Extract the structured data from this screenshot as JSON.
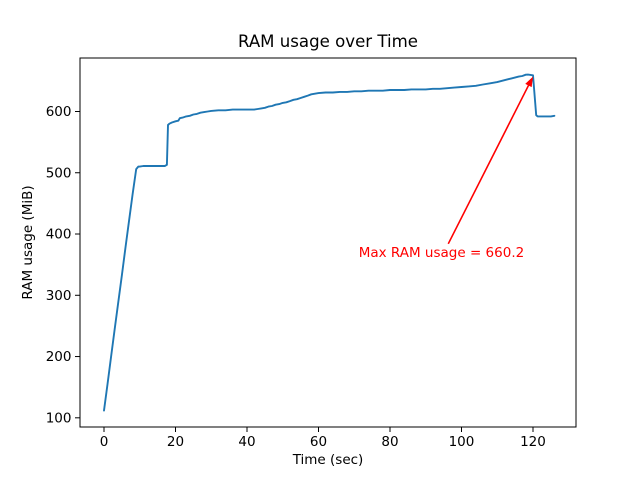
{
  "figure": {
    "background": "#ffffff"
  },
  "chart_data": {
    "type": "line",
    "title": "RAM usage over Time",
    "xlabel": "Time (sec)",
    "ylabel": "RAM usage (MiB)",
    "xlim": [
      -6.71,
      132.03
    ],
    "ylim": [
      85,
      687.3
    ],
    "xticks": [
      0,
      20,
      40,
      60,
      80,
      100,
      120
    ],
    "yticks": [
      100,
      200,
      300,
      400,
      500,
      600
    ],
    "grid": false,
    "legend": null,
    "colors": {
      "line": "#1f77b4",
      "annotation": "#ff0000",
      "axes": "#000000",
      "background": "#ffffff"
    },
    "series": [
      {
        "name": "RAM usage",
        "points": [
          [
            0,
            112
          ],
          [
            1,
            156
          ],
          [
            2,
            200
          ],
          [
            3,
            245
          ],
          [
            4,
            289
          ],
          [
            5,
            333
          ],
          [
            6,
            377
          ],
          [
            7,
            421
          ],
          [
            8,
            465
          ],
          [
            9,
            506
          ],
          [
            9.6,
            510
          ],
          [
            10,
            510
          ],
          [
            11,
            511
          ],
          [
            12,
            511
          ],
          [
            13,
            511
          ],
          [
            14,
            511
          ],
          [
            15,
            511
          ],
          [
            16,
            511
          ],
          [
            17,
            511
          ],
          [
            17.6,
            513
          ],
          [
            17.9,
            578
          ],
          [
            18.3,
            580
          ],
          [
            19,
            582
          ],
          [
            20,
            584
          ],
          [
            20.8,
            585
          ],
          [
            21.2,
            589
          ],
          [
            22,
            590
          ],
          [
            23,
            592
          ],
          [
            24,
            593
          ],
          [
            25,
            595
          ],
          [
            26,
            596
          ],
          [
            27,
            598
          ],
          [
            28,
            599
          ],
          [
            29,
            600
          ],
          [
            30,
            601
          ],
          [
            32,
            602
          ],
          [
            34,
            602
          ],
          [
            36,
            603
          ],
          [
            38,
            603
          ],
          [
            40,
            603
          ],
          [
            42,
            603
          ],
          [
            43,
            604
          ],
          [
            44,
            605
          ],
          [
            45,
            606
          ],
          [
            46,
            608
          ],
          [
            47,
            609
          ],
          [
            48,
            611
          ],
          [
            49,
            612
          ],
          [
            50,
            614
          ],
          [
            51,
            615
          ],
          [
            52,
            617
          ],
          [
            53,
            619
          ],
          [
            54,
            620
          ],
          [
            55,
            622
          ],
          [
            56,
            624
          ],
          [
            57,
            626
          ],
          [
            58,
            628
          ],
          [
            59,
            629
          ],
          [
            60,
            630
          ],
          [
            62,
            631
          ],
          [
            64,
            631
          ],
          [
            66,
            632
          ],
          [
            68,
            632
          ],
          [
            70,
            633
          ],
          [
            72,
            633
          ],
          [
            74,
            634
          ],
          [
            76,
            634
          ],
          [
            78,
            634
          ],
          [
            80,
            635
          ],
          [
            82,
            635
          ],
          [
            84,
            635
          ],
          [
            86,
            636
          ],
          [
            88,
            636
          ],
          [
            90,
            636
          ],
          [
            92,
            637
          ],
          [
            94,
            637
          ],
          [
            96,
            638
          ],
          [
            98,
            639
          ],
          [
            100,
            640
          ],
          [
            102,
            641
          ],
          [
            104,
            642
          ],
          [
            106,
            644
          ],
          [
            108,
            646
          ],
          [
            110,
            648
          ],
          [
            112,
            651
          ],
          [
            114,
            654
          ],
          [
            116,
            657
          ],
          [
            117,
            658
          ],
          [
            118,
            660
          ],
          [
            118.6,
            660.2
          ],
          [
            120,
            659
          ],
          [
            120.9,
            594
          ],
          [
            121.3,
            592
          ],
          [
            122,
            592
          ],
          [
            123,
            592
          ],
          [
            124,
            592
          ],
          [
            125,
            592
          ],
          [
            126,
            593
          ]
        ]
      }
    ],
    "annotation": {
      "label": "Max RAM usage = 660.2",
      "color": "#ff0000",
      "arrow_tip_xy": [
        120,
        657
      ],
      "arrow_tail_xy": [
        96.3,
        384
      ],
      "text_center_xy": [
        94.4,
        370
      ]
    }
  }
}
